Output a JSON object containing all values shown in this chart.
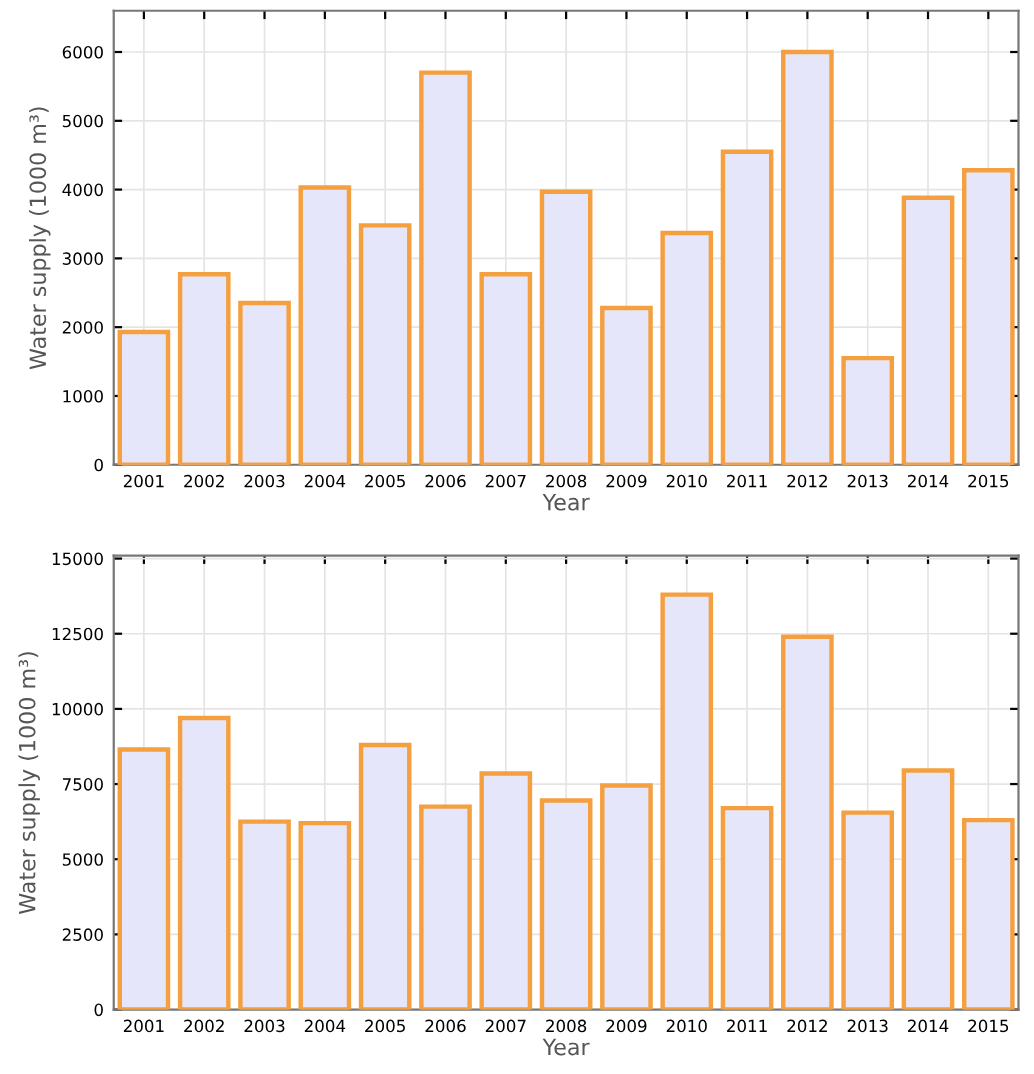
{
  "chart_data": [
    {
      "type": "bar",
      "xlabel": "Year",
      "ylabel": "Water supply (1000 m³)",
      "categories": [
        "2001",
        "2002",
        "2003",
        "2004",
        "2005",
        "2006",
        "2007",
        "2008",
        "2009",
        "2010",
        "2011",
        "2012",
        "2013",
        "2014",
        "2015"
      ],
      "series": [
        {
          "color": "#e6e6fa",
          "values": [
            1930,
            2770,
            2350,
            4030,
            3480,
            5700,
            2770,
            3970,
            2280,
            3370,
            4550,
            6000,
            1550,
            3880,
            4280
          ]
        }
      ],
      "ylim": [
        0,
        6600
      ],
      "yticks": [
        0,
        1000,
        2000,
        3000,
        4000,
        5000,
        6000
      ],
      "grid": true
    },
    {
      "type": "bar",
      "xlabel": "Year",
      "ylabel": "Water supply (1000 m³)",
      "categories": [
        "2001",
        "2002",
        "2003",
        "2004",
        "2005",
        "2006",
        "2007",
        "2008",
        "2009",
        "2010",
        "2011",
        "2012",
        "2013",
        "2014",
        "2015"
      ],
      "series": [
        {
          "color": "#e6e6fa",
          "values": [
            8650,
            9700,
            6250,
            6200,
            8800,
            6750,
            7850,
            6950,
            7450,
            13800,
            6700,
            12400,
            6550,
            7950,
            6300
          ]
        }
      ],
      "ylim": [
        0,
        15100
      ],
      "yticks": [
        0,
        2500,
        5000,
        7500,
        10000,
        12500,
        15000
      ],
      "grid": true
    }
  ]
}
